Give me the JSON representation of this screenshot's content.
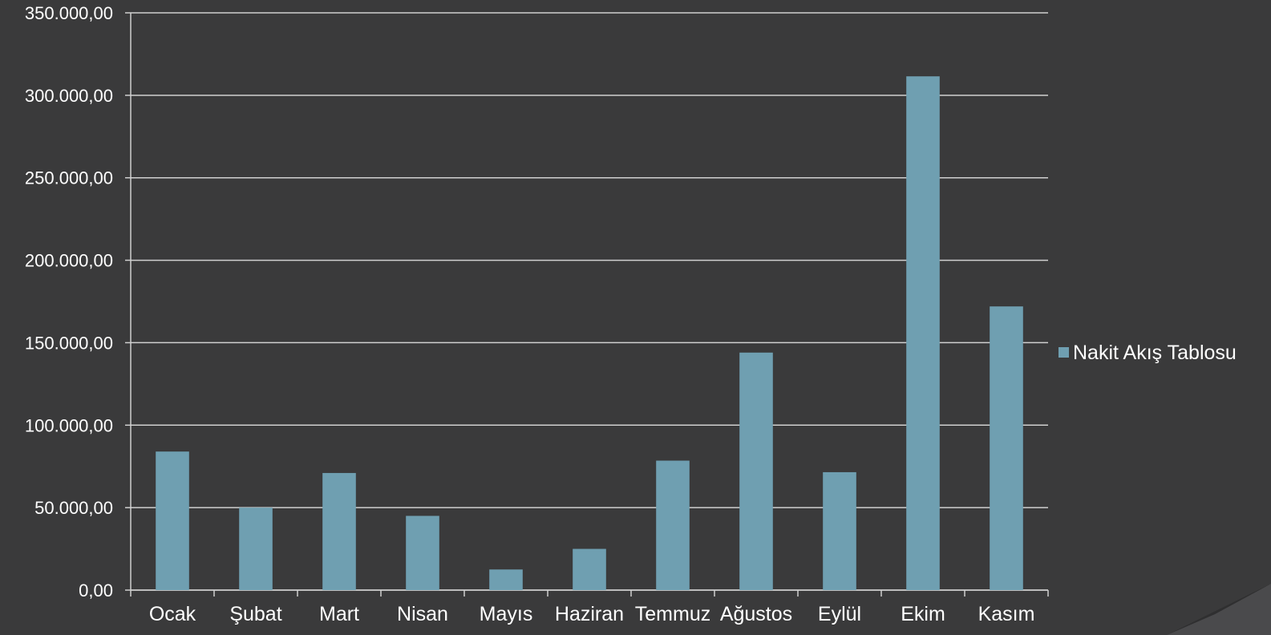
{
  "chart_data": {
    "type": "bar",
    "title": "",
    "categories": [
      "Ocak",
      "Şubat",
      "Mart",
      "Nisan",
      "Mayıs",
      "Haziran",
      "Temmuz",
      "Ağustos",
      "Eylül",
      "Ekim",
      "Kasım"
    ],
    "series": [
      {
        "name": "Nakit Akış Tablosu",
        "values": [
          84000,
          50000,
          71000,
          45000,
          12500,
          25000,
          78500,
          144000,
          71500,
          311500,
          172000
        ]
      }
    ],
    "y_tick_labels": [
      "0,00",
      "50.000,00",
      "100.000,00",
      "150.000,00",
      "200.000,00",
      "250.000,00",
      "300.000,00",
      "350.000,00"
    ],
    "ylim": [
      0,
      350000
    ],
    "y_tick_step": 50000,
    "grid": true,
    "legend_position": "right",
    "colors": {
      "background": "#3a3a3b",
      "bar": "#6f9fb1",
      "grid": "#d0d0d0",
      "text": "#ffffff"
    }
  }
}
